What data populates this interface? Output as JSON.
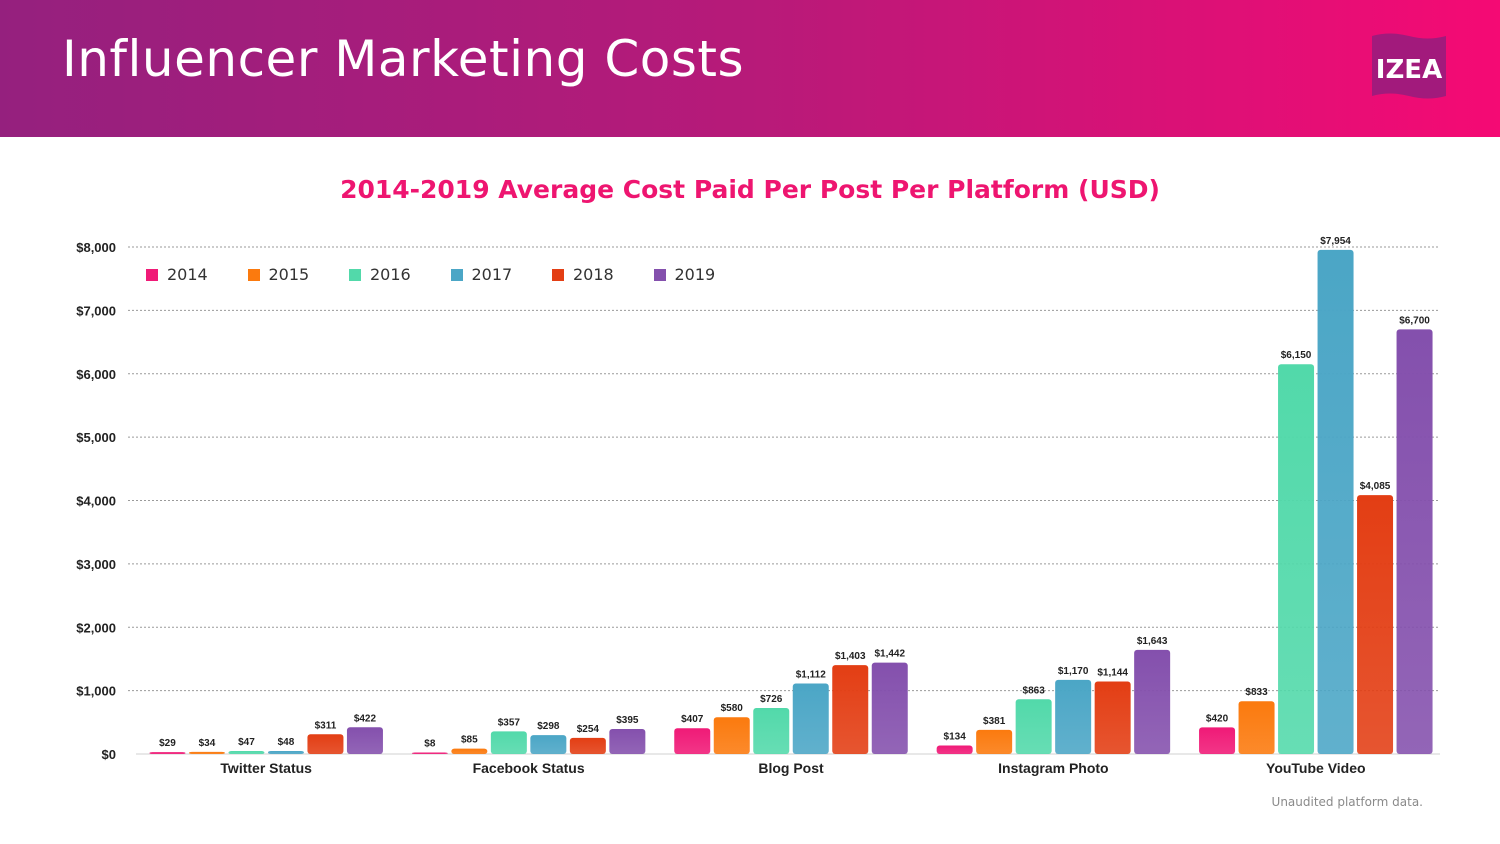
{
  "header": {
    "title": "Influencer Marketing Costs",
    "logo_text": "IZEA"
  },
  "chart_data": {
    "type": "bar",
    "title": "2014-2019 Average Cost Paid Per Post Per Platform (USD)",
    "xlabel": "",
    "ylabel": "",
    "categories": [
      "Twitter Status",
      "Facebook Status",
      "Blog Post",
      "Instagram Photo",
      "YouTube Video"
    ],
    "series": [
      {
        "name": "2014",
        "color": "#f01a77",
        "values": [
          29,
          8,
          407,
          134,
          420
        ],
        "labels": [
          "$29",
          "$8",
          "$407",
          "$134",
          "$420"
        ]
      },
      {
        "name": "2015",
        "color": "#fb7a0e",
        "values": [
          34,
          85,
          580,
          381,
          833
        ],
        "labels": [
          "$34",
          "$85",
          "$580",
          "$381",
          "$833"
        ]
      },
      {
        "name": "2016",
        "color": "#52d9aa",
        "values": [
          47,
          357,
          726,
          863,
          6150
        ],
        "labels": [
          "$47",
          "$357",
          "$726",
          "$863",
          "$6,150"
        ]
      },
      {
        "name": "2017",
        "color": "#4ba6c6",
        "values": [
          48,
          298,
          1112,
          1170,
          7954
        ],
        "labels": [
          "$48",
          "$298",
          "$1,112",
          "$1,170",
          "$7,954"
        ]
      },
      {
        "name": "2018",
        "color": "#e33e14",
        "values": [
          311,
          254,
          1403,
          1144,
          4085
        ],
        "labels": [
          "$311",
          "$254",
          "$1,403",
          "$1,144",
          "$4,085"
        ]
      },
      {
        "name": "2019",
        "color": "#8450ad",
        "values": [
          422,
          395,
          1442,
          1643,
          6700
        ],
        "labels": [
          "$422",
          "$395",
          "$1,442",
          "$1,643",
          "$6,700"
        ]
      }
    ],
    "ylim": [
      0,
      8000
    ],
    "yticks": [
      0,
      1000,
      2000,
      3000,
      4000,
      5000,
      6000,
      7000,
      8000
    ],
    "ytick_labels": [
      "$0",
      "$1,000",
      "$2,000",
      "$3,000",
      "$4,000",
      "$5,000",
      "$6,000",
      "$7,000",
      "$8,000"
    ],
    "grid": true,
    "legend_position": "top-left"
  },
  "footnote": "Unaudited platform data.",
  "colors": {
    "accent": "#ee1570",
    "header_start": "#95207e",
    "header_end": "#f50a74"
  }
}
